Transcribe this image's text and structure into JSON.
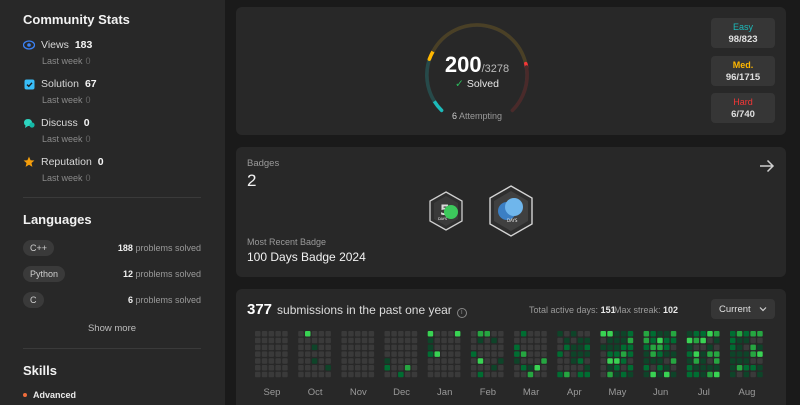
{
  "community": {
    "title": "Community Stats",
    "items": [
      {
        "label": "Views",
        "value": "183",
        "sub_label": "Last week",
        "sub_value": "0",
        "icon": "eye-icon",
        "color": "#3b82f6"
      },
      {
        "label": "Solution",
        "value": "67",
        "sub_label": "Last week",
        "sub_value": "0",
        "icon": "check-square-icon",
        "color": "#38bdf8"
      },
      {
        "label": "Discuss",
        "value": "0",
        "sub_label": "Last week",
        "sub_value": "0",
        "icon": "chat-icon",
        "color": "#2dd4bf"
      },
      {
        "label": "Reputation",
        "value": "0",
        "sub_label": "Last week",
        "sub_value": "0",
        "icon": "star-icon",
        "color": "#f59e0b"
      }
    ]
  },
  "languages": {
    "title": "Languages",
    "items": [
      {
        "name": "C++",
        "count": "188",
        "suffix": "problems solved"
      },
      {
        "name": "Python",
        "count": "12",
        "suffix": "problems solved"
      },
      {
        "name": "C",
        "count": "6",
        "suffix": "problems solved"
      }
    ],
    "show_more": "Show more"
  },
  "skills": {
    "title": "Skills",
    "level": "Advanced"
  },
  "solved": {
    "count": "200",
    "total": "/3278",
    "label": "Solved",
    "attempting_count": "6",
    "attempting_label": "Attempting",
    "easy": {
      "label": "Easy",
      "value": "98/823"
    },
    "medium": {
      "label": "Med.",
      "value": "96/1715"
    },
    "hard": {
      "label": "Hard",
      "value": "6/740"
    }
  },
  "badges": {
    "label": "Badges",
    "count": "2",
    "recent_label": "Most Recent Badge",
    "recent_name": "100 Days Badge 2024",
    "badge_texts": [
      "DAYS",
      "DAYS"
    ]
  },
  "submissions": {
    "count": "377",
    "label": "submissions in the past one year",
    "active_days_label": "Total active days:",
    "active_days": "151",
    "max_streak_label": "Max streak:",
    "max_streak": "102",
    "select_value": "Current",
    "months": [
      "Sep",
      "Oct",
      "Nov",
      "Dec",
      "Jan",
      "Feb",
      "Mar",
      "Apr",
      "May",
      "Jun",
      "Jul",
      "Aug"
    ]
  }
}
